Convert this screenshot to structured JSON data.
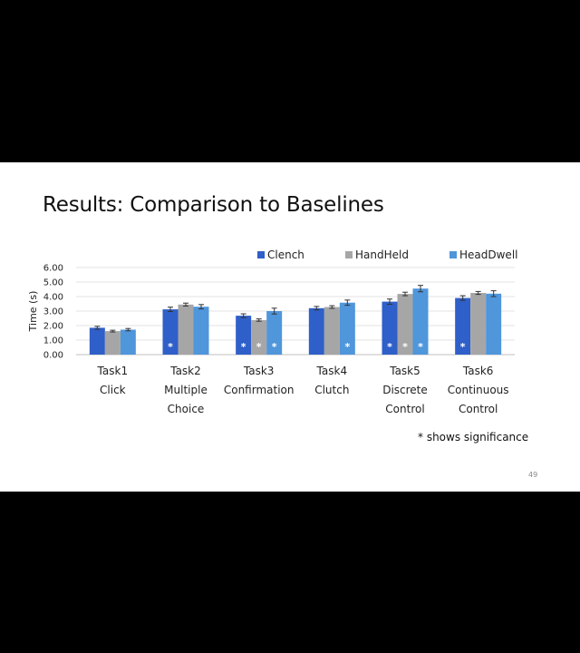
{
  "slide": {
    "title": "Results: Comparison to Baselines",
    "note": "* shows significance",
    "page_number": "49"
  },
  "chart_data": {
    "type": "bar",
    "title": "",
    "ylabel": "Time (s)",
    "xlabel": "",
    "ylim": [
      0,
      6
    ],
    "yticks": [
      "0.00",
      "1.00",
      "2.00",
      "3.00",
      "4.00",
      "5.00",
      "6.00"
    ],
    "grid": true,
    "legend_position": "top",
    "categories": [
      [
        "Task1",
        "Click"
      ],
      [
        "Task2",
        "Multiple",
        "Choice"
      ],
      [
        "Task3",
        "Confirmation"
      ],
      [
        "Task4",
        "Clutch"
      ],
      [
        "Task5",
        "Discrete",
        "Control"
      ],
      [
        "Task6",
        "Continuous",
        "Control"
      ]
    ],
    "series": [
      {
        "name": "Clench",
        "color": "#2f5fc8",
        "values": [
          1.85,
          3.12,
          2.68,
          3.2,
          3.65,
          3.9
        ],
        "errors": [
          0.1,
          0.15,
          0.13,
          0.12,
          0.18,
          0.16
        ],
        "significant": [
          false,
          true,
          true,
          false,
          true,
          true
        ]
      },
      {
        "name": "HandHeld",
        "color": "#a6a6a6",
        "values": [
          1.62,
          3.45,
          2.38,
          3.28,
          4.18,
          4.25
        ],
        "errors": [
          0.06,
          0.1,
          0.08,
          0.09,
          0.12,
          0.1
        ],
        "significant": [
          false,
          false,
          true,
          false,
          true,
          false
        ]
      },
      {
        "name": "HeadDwell",
        "color": "#4f96db",
        "values": [
          1.72,
          3.3,
          3.0,
          3.58,
          4.55,
          4.2
        ],
        "errors": [
          0.08,
          0.15,
          0.2,
          0.18,
          0.22,
          0.2
        ],
        "significant": [
          false,
          false,
          true,
          true,
          true,
          false
        ]
      }
    ],
    "significance_marker": "*"
  }
}
